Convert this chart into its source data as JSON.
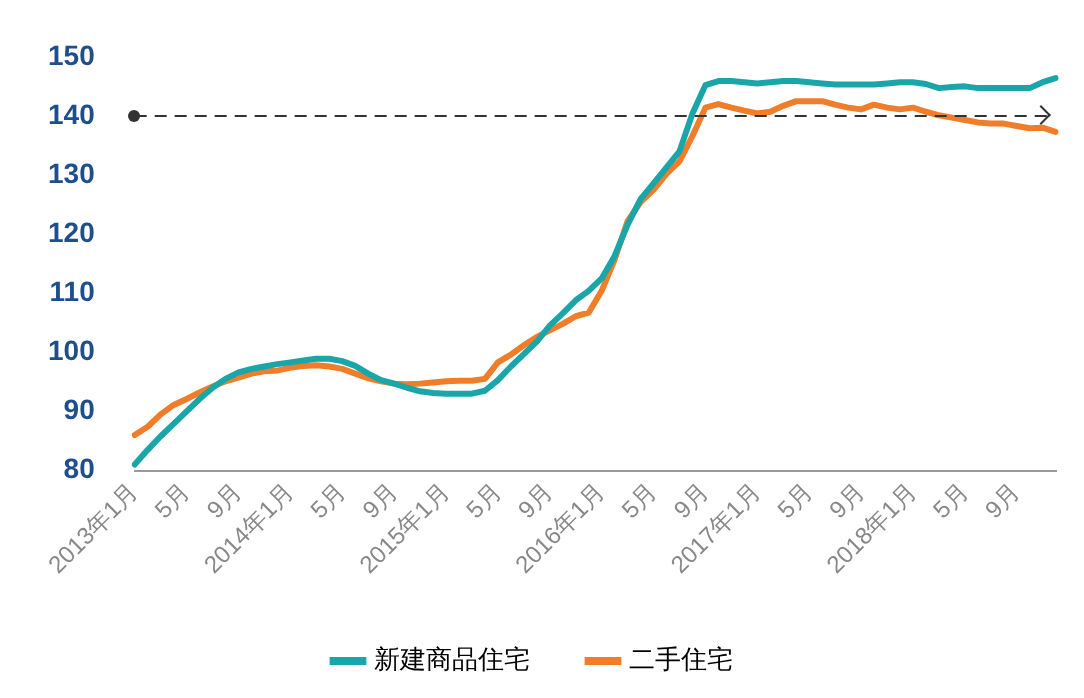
{
  "chart_data": {
    "type": "line",
    "categories": [
      "2013年1月",
      null,
      null,
      null,
      "5月",
      null,
      null,
      null,
      "9月",
      null,
      null,
      null,
      "2014年1月",
      null,
      null,
      null,
      "5月",
      null,
      null,
      null,
      "9月",
      null,
      null,
      null,
      "2015年1月",
      null,
      null,
      null,
      "5月",
      null,
      null,
      null,
      "9月",
      null,
      null,
      null,
      "2016年1月",
      null,
      null,
      null,
      "5月",
      null,
      null,
      null,
      "9月",
      null,
      null,
      null,
      "2017年1月",
      null,
      null,
      null,
      "5月",
      null,
      null,
      null,
      "9月",
      null,
      null,
      null,
      "2018年1月",
      null,
      null,
      null,
      "5月",
      null,
      null,
      null,
      "9月",
      null,
      null,
      null
    ],
    "series": [
      {
        "name": "新建商品住宅",
        "color": "#1aa6a8",
        "values": [
          81,
          83.5,
          85.8,
          87.9,
          90,
          92.1,
          94,
          95.5,
          96.6,
          97.2,
          97.6,
          98,
          98.3,
          98.6,
          98.9,
          98.9,
          98.5,
          97.7,
          96.4,
          95.3,
          94.7,
          94,
          93.4,
          93.1,
          93,
          93,
          93,
          93.5,
          95.3,
          97.6,
          99.7,
          101.8,
          104.5,
          106.6,
          108.8,
          110.4,
          112.5,
          116.3,
          121.6,
          125.9,
          128.6,
          131.3,
          134,
          140.4,
          145.2,
          145.9,
          145.9,
          145.7,
          145.5,
          145.7,
          145.9,
          145.9,
          145.7,
          145.5,
          145.3,
          145.3,
          145.3,
          145.3,
          145.5,
          145.7,
          145.7,
          145.4,
          144.7,
          144.9,
          145,
          144.7,
          144.7,
          144.7,
          144.7,
          144.7,
          145.7,
          146.4
        ]
      },
      {
        "name": "二手住宅",
        "color": "#f07d2a",
        "values": [
          86,
          87.4,
          89.5,
          91.1,
          92.1,
          93.2,
          94.2,
          95.1,
          95.7,
          96.4,
          96.8,
          96.9,
          97.4,
          97.7,
          97.8,
          97.6,
          97.2,
          96.4,
          95.6,
          95.1,
          94.7,
          94.6,
          94.7,
          94.9,
          95.1,
          95.2,
          95.2,
          95.5,
          98.3,
          99.6,
          101.2,
          102.6,
          103.7,
          104.8,
          106.1,
          106.7,
          110.4,
          115.7,
          122.2,
          125.4,
          127.5,
          130.2,
          132.3,
          136.6,
          141.4,
          142,
          141.4,
          140.9,
          140.4,
          140.7,
          141.7,
          142.5,
          142.5,
          142.5,
          141.9,
          141.4,
          141.1,
          141.9,
          141.4,
          141.1,
          141.4,
          140.7,
          140.1,
          139.7,
          139.3,
          138.9,
          138.7,
          138.7,
          138.3,
          137.9,
          138,
          137.3
        ]
      }
    ],
    "ylim": [
      80,
      150
    ],
    "yticks": [
      80,
      90,
      100,
      110,
      120,
      130,
      140,
      150
    ],
    "ref_lines": [
      {
        "axis": "y",
        "value": 140,
        "color": "#333333",
        "line_style": "dashed"
      }
    ],
    "grid": false,
    "legend": "bottom",
    "marker": "none",
    "line_style": "solid"
  }
}
